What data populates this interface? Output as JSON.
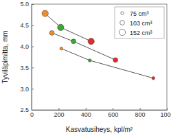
{
  "chart_data": {
    "type": "line",
    "x_label": "Kasvatusiheys, kpl/m²",
    "y_label": "Tyviläpimitta, mm",
    "xlim": [
      0,
      1000
    ],
    "xticks": [
      0,
      200,
      400,
      600,
      800,
      1000
    ],
    "ylim": [
      2.5,
      5.0
    ],
    "yticks": [
      2.5,
      {
        "value": 3.0,
        "label": "3.0"
      },
      3.5,
      {
        "value": 4.0,
        "label": "4.0"
      },
      4.5,
      {
        "value": 5.0,
        "label": "5.0"
      }
    ],
    "grid": false,
    "legend": "upper right",
    "series": [
      {
        "name": "75 cm³",
        "color": "#555555",
        "colors": [
          "#f28c28",
          "#3aaa35",
          "#e8292a"
        ],
        "marker": "small",
        "x": [
          220,
          430,
          900
        ],
        "values": [
          3.95,
          3.67,
          3.25
        ]
      },
      {
        "name": "103 cm³",
        "color": "#555555",
        "colors": [
          "#f28c28",
          "#3aaa35",
          "#e8292a"
        ],
        "marker": "medium",
        "x": [
          150,
          310,
          620
        ],
        "values": [
          4.32,
          4.12,
          3.68
        ]
      },
      {
        "name": "152 cm³",
        "color": "#555555",
        "colors": [
          "#f28c28",
          "#3aaa35",
          "#e8292a"
        ],
        "marker": "large",
        "x": [
          100,
          215,
          440
        ],
        "values": [
          4.78,
          4.45,
          4.12
        ]
      }
    ]
  }
}
